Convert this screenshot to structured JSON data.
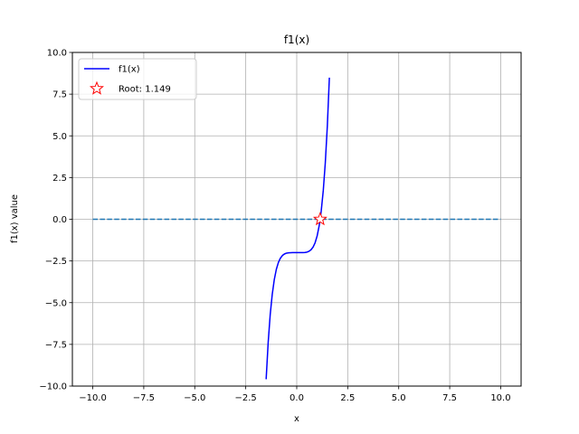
{
  "chart_data": {
    "type": "line",
    "title": "f1(x)",
    "xlabel": "x",
    "ylabel": "f1(x) value",
    "xlim": [
      -11,
      11
    ],
    "ylim": [
      -10,
      10
    ],
    "x_ticks": [
      -10.0,
      -7.5,
      -5.0,
      -2.5,
      0.0,
      2.5,
      5.0,
      7.5,
      10.0
    ],
    "x_tick_labels": [
      "−10.0",
      "−7.5",
      "−5.0",
      "−2.5",
      "0.0",
      "2.5",
      "5.0",
      "7.5",
      "10.0"
    ],
    "y_ticks": [
      -10.0,
      -7.5,
      -5.0,
      -2.5,
      0.0,
      2.5,
      5.0,
      7.5,
      10.0
    ],
    "y_tick_labels": [
      "−10.0",
      "−7.5",
      "−5.0",
      "−2.5",
      "0.0",
      "2.5",
      "5.0",
      "7.5",
      "10.0"
    ],
    "grid": true,
    "legend_position": "upper-left",
    "series": [
      {
        "name": "f1(x)",
        "style": "solid",
        "color": "#0000ff",
        "x": [
          -1.5,
          -1.4,
          -1.3,
          -1.2,
          -1.1,
          -1.0,
          -0.9,
          -0.8,
          -0.7,
          -0.6,
          -0.5,
          -0.4,
          -0.3,
          -0.2,
          -0.1,
          0.0,
          0.1,
          0.2,
          0.3,
          0.4,
          0.5,
          0.6,
          0.7,
          0.8,
          0.9,
          1.0,
          1.1,
          1.149,
          1.2,
          1.3,
          1.4,
          1.5,
          1.6
        ],
        "y": [
          -9.59,
          -7.38,
          -5.71,
          -4.49,
          -3.61,
          -3.0,
          -2.59,
          -2.33,
          -2.17,
          -2.08,
          -2.03,
          -2.01,
          -2.002,
          -2.0,
          -2.0,
          -2.0,
          -2.0,
          -2.0,
          -1.998,
          -1.99,
          -1.97,
          -1.92,
          -1.83,
          -1.67,
          -1.41,
          -1.0,
          -0.39,
          0.0,
          0.49,
          1.71,
          3.38,
          5.59,
          8.49
        ]
      },
      {
        "style": "dashed",
        "color": "#1f77b4",
        "x": [
          -10,
          10
        ],
        "y": [
          0,
          0
        ]
      }
    ],
    "markers": [
      {
        "name": "Root: 1.149",
        "x": 1.149,
        "y": 0.0,
        "shape": "star",
        "color": "#ff0000",
        "fill": "#ffffff"
      }
    ],
    "legend": [
      {
        "label": "f1(x)",
        "kind": "line",
        "color": "#0000ff"
      },
      {
        "label": "Root: 1.149",
        "kind": "star",
        "color": "#ff0000"
      }
    ]
  }
}
